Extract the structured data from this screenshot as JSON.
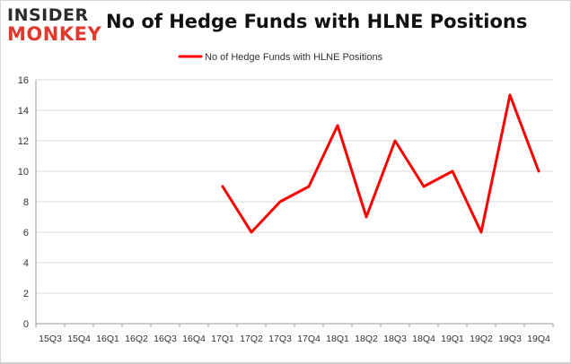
{
  "brand": {
    "line1": "INSIDER",
    "line2": "MONKEY"
  },
  "colors": {
    "series": "#ff0000",
    "brand_accent": "#e03a2f",
    "grid": "#d9d9d9"
  },
  "chart_data": {
    "type": "line",
    "title": "No of Hedge Funds with HLNE Positions",
    "categories": [
      "15Q3",
      "15Q4",
      "16Q1",
      "16Q2",
      "16Q3",
      "16Q4",
      "17Q1",
      "17Q2",
      "17Q3",
      "17Q4",
      "18Q1",
      "18Q2",
      "18Q3",
      "18Q4",
      "19Q1",
      "19Q2",
      "19Q3",
      "19Q4"
    ],
    "series": [
      {
        "name": "No of Hedge Funds with HLNE Positions",
        "values": [
          null,
          null,
          null,
          null,
          null,
          null,
          9,
          6,
          8,
          9,
          13,
          7,
          12,
          9,
          10,
          6,
          15,
          10
        ]
      }
    ],
    "ylim": [
      0,
      16
    ],
    "yticks": [
      0,
      2,
      4,
      6,
      8,
      10,
      12,
      14,
      16
    ],
    "grid": true,
    "legend": "top-center"
  }
}
